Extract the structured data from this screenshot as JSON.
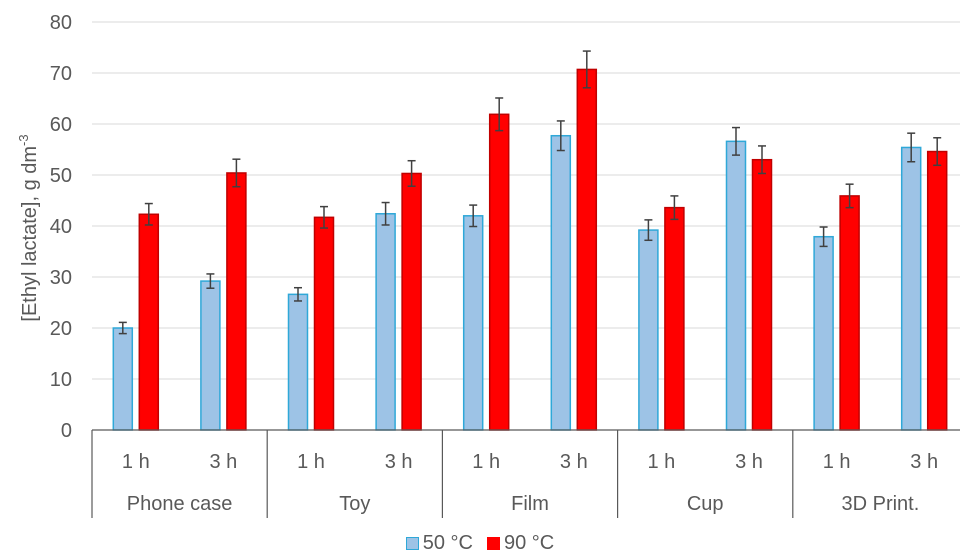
{
  "chart_data": {
    "type": "bar",
    "ylabel": "[Ethyl lactate], g dm",
    "ylabel_sup": "-3",
    "ylim": [
      0,
      80
    ],
    "yticks": [
      "0",
      "10",
      "20",
      "30",
      "40",
      "50",
      "60",
      "70",
      "80"
    ],
    "grid": true,
    "legend_position": "bottom",
    "groups": [
      "Phone case",
      "Toy",
      "Film",
      "Cup",
      "3D Print."
    ],
    "times": [
      "1 h",
      "3 h"
    ],
    "series": [
      {
        "name": "50 °C",
        "color": "#9DC3E6",
        "border": "#2FA8D8",
        "values": [
          20.0,
          29.2,
          26.6,
          42.4,
          42.0,
          57.7,
          39.2,
          56.6,
          37.9,
          55.4
        ],
        "errors": [
          1.1,
          1.4,
          1.3,
          2.2,
          2.1,
          2.9,
          2.0,
          2.7,
          1.9,
          2.8
        ]
      },
      {
        "name": "90 °C",
        "color": "#FF0000",
        "border": "#C00000",
        "values": [
          42.3,
          50.4,
          41.7,
          50.3,
          61.9,
          70.7,
          43.6,
          53.0,
          45.9,
          54.6
        ],
        "errors": [
          2.1,
          2.7,
          2.1,
          2.5,
          3.2,
          3.6,
          2.3,
          2.7,
          2.3,
          2.7
        ]
      }
    ]
  }
}
